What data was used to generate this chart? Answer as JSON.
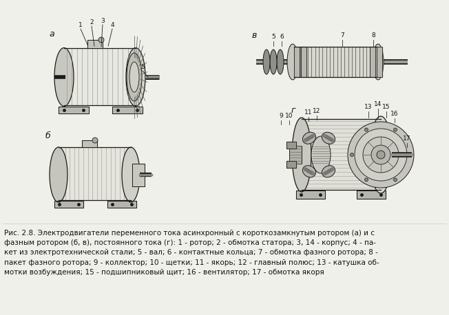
{
  "background_color": "#f0f0eb",
  "text_color": "#111111",
  "line_color": "#1a1a1a",
  "fig_width": 6.52,
  "fig_height": 4.58,
  "dpi": 100,
  "label_a": "а",
  "label_b": "б",
  "label_v": "в",
  "label_g": "г",
  "caption_fontsize": 7.5,
  "label_fontsize": 9,
  "caption_lines": [
    "Рис. 2.8. Электродвигатели переменного тока асинхронный с короткозамкнутым ротором (а) и с",
    "фазным ротором (б, в), постоянного тока (г): 1 - ротор; 2 - обмотка статора; 3, 14 - корпус; 4 - па-",
    "кет из электротехнической стали; 5 - вал; 6 - контактные кольца; 7 - обмотка фазного ротора; 8 -",
    "пакет фазного ротора; 9 - коллектор; 10 - щетки; 11 - якорь; 12 - главный полюс; 13 - катушка об-",
    "мотки возбуждения; 15 - подшипниковый щит; 16 - вентилятор; 17 - обмотка якоря"
  ]
}
